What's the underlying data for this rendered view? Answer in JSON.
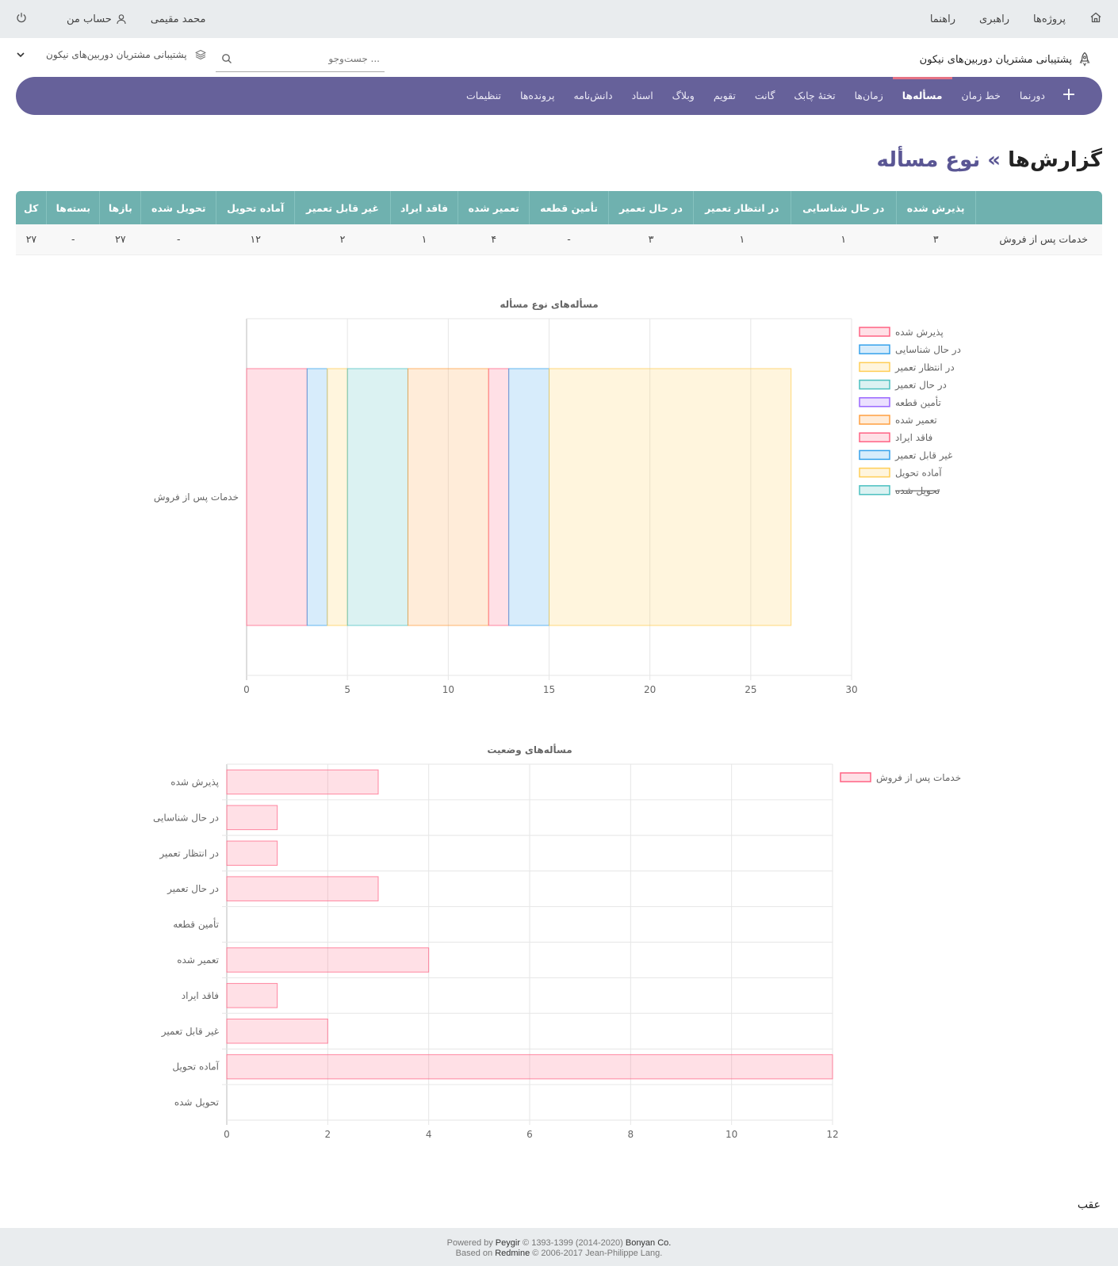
{
  "topbar": {
    "home_icon": "home-icon",
    "projects": "پروژه‌ها",
    "admin": "راهبری",
    "help": "راهنما",
    "user_name": "محمد مقیمی",
    "my_account": "حساب من",
    "logout_icon": "power-icon"
  },
  "header": {
    "project_title": "پشتیبانی مشتریان دوربین‌های نیکون",
    "search_placeholder": "... جست‌وجو",
    "project_jump": "پشتیبانی مشتریان دوربین‌های نیکون"
  },
  "nav": {
    "tabs": [
      "دورنما",
      "خط زمان",
      "مسأله‌ها",
      "زمان‌ها",
      "تختهٔ چابک",
      "گانت",
      "تقویم",
      "وبلاگ",
      "اسناد",
      "دانش‌نامه",
      "پرونده‌ها",
      "تنظیمات"
    ],
    "active_index": 2
  },
  "page": {
    "title": "گزارش‌ها",
    "separator": "»",
    "subtitle": "نوع مسأله"
  },
  "table": {
    "headers": [
      "پذیرش شده",
      "در حال شناسایی",
      "در انتظار تعمیر",
      "در حال تعمیر",
      "تأمین قطعه",
      "تعمیر شده",
      "فاقد ایراد",
      "غیر قابل تعمیر",
      "آماده تحویل",
      "تحویل شده",
      "بازها",
      "بسته‌ها",
      "کل"
    ],
    "rows": [
      {
        "label": "خدمات پس از فروش",
        "cells": [
          "۳",
          "۱",
          "۱",
          "۳",
          "-",
          "۴",
          "۱",
          "۲",
          "۱۲",
          "-",
          "۲۷",
          "-",
          "۲۷"
        ]
      }
    ]
  },
  "chart_data": [
    {
      "type": "bar",
      "orientation": "horizontal",
      "stacked": true,
      "title": "مسأله‌های نوع مسأله",
      "categories": [
        "خدمات پس از فروش"
      ],
      "xlim": [
        0,
        30
      ],
      "x_ticks": [
        "0",
        "5",
        "10",
        "15",
        "20",
        "25",
        "30"
      ],
      "grid": true,
      "legend_position": "right",
      "series": [
        {
          "name": "پذیرش شده",
          "values": [
            3
          ],
          "color": "#ff6384",
          "hidden": false
        },
        {
          "name": "در حال شناسایی",
          "values": [
            1
          ],
          "color": "#36a2eb",
          "hidden": false
        },
        {
          "name": "در انتظار تعمیر",
          "values": [
            1
          ],
          "color": "#ffce56",
          "hidden": false
        },
        {
          "name": "در حال تعمیر",
          "values": [
            3
          ],
          "color": "#4bc0c0",
          "hidden": false
        },
        {
          "name": "تأمین قطعه",
          "values": [
            0
          ],
          "color": "#9966ff",
          "hidden": false
        },
        {
          "name": "تعمیر شده",
          "values": [
            4
          ],
          "color": "#ff9f40",
          "hidden": false
        },
        {
          "name": "فاقد ایراد",
          "values": [
            1
          ],
          "color": "#ff6384",
          "hidden": false
        },
        {
          "name": "غیر قابل تعمیر",
          "values": [
            2
          ],
          "color": "#36a2eb",
          "hidden": false
        },
        {
          "name": "آماده تحویل",
          "values": [
            12
          ],
          "color": "#ffce56",
          "hidden": false
        },
        {
          "name": "تحویل شده",
          "values": [
            0
          ],
          "color": "#4bc0c0",
          "hidden": true
        }
      ]
    },
    {
      "type": "bar",
      "orientation": "horizontal",
      "title": "مسأله‌های وضعیت",
      "categories": [
        "پذیرش شده",
        "در حال شناسایی",
        "در انتظار تعمیر",
        "در حال تعمیر",
        "تأمین قطعه",
        "تعمیر شده",
        "فاقد ایراد",
        "غیر قابل تعمیر",
        "آماده تحویل",
        "تحویل شده"
      ],
      "xlim": [
        0,
        12
      ],
      "x_ticks": [
        "0",
        "2",
        "4",
        "6",
        "8",
        "10",
        "12"
      ],
      "grid": true,
      "legend_position": "right",
      "series": [
        {
          "name": "خدمات پس از فروش",
          "values": [
            3,
            1,
            1,
            3,
            0,
            4,
            1,
            2,
            12,
            0
          ],
          "color": "#ff6384"
        }
      ]
    }
  ],
  "back_link": "عقب",
  "footer": {
    "line1_pre": "Powered by ",
    "peygir": "Peygir",
    "line1_mid": " © 1393-1399 (2014-2020) ",
    "bonyan": "Bonyan Co.",
    "line2_pre": "Based on ",
    "redmine": "Redmine",
    "line2_post": " © 2006-2017 Jean-Philippe Lang."
  }
}
